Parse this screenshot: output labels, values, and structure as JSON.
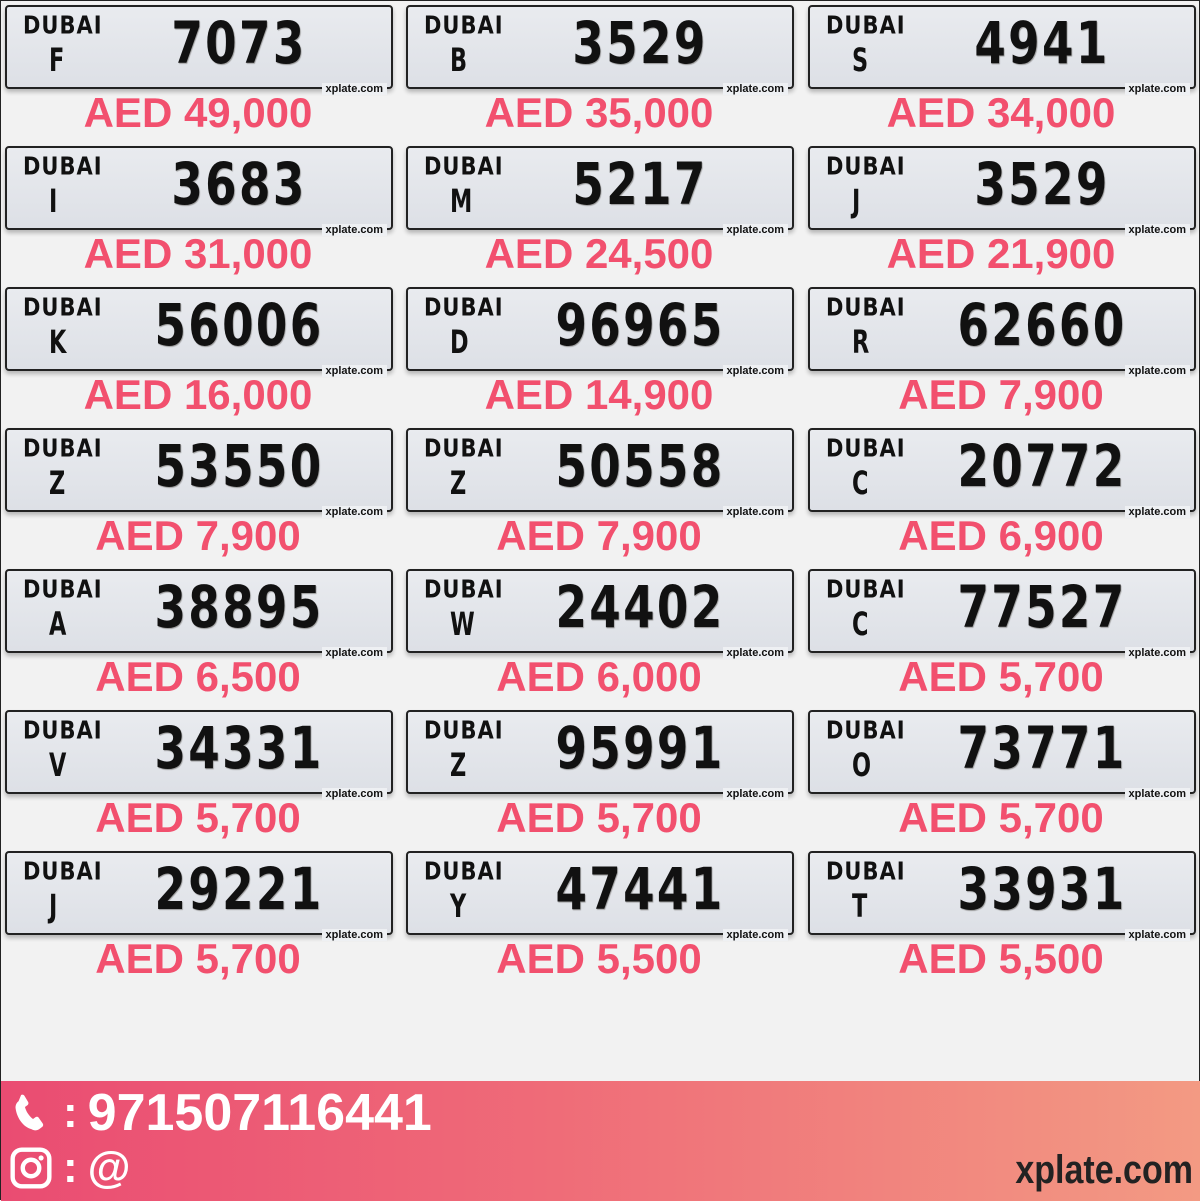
{
  "plates": [
    {
      "emirate": "DUBAI",
      "code": "F",
      "number": "7073",
      "price": "AED 49,000",
      "brand": "xplate.com"
    },
    {
      "emirate": "DUBAI",
      "code": "B",
      "number": "3529",
      "price": "AED 35,000",
      "brand": "xplate.com"
    },
    {
      "emirate": "DUBAI",
      "code": "S",
      "number": "4941",
      "price": "AED 34,000",
      "brand": "xplate.com"
    },
    {
      "emirate": "DUBAI",
      "code": "I",
      "number": "3683",
      "price": "AED 31,000",
      "brand": "xplate.com"
    },
    {
      "emirate": "DUBAI",
      "code": "M",
      "number": "5217",
      "price": "AED 24,500",
      "brand": "xplate.com"
    },
    {
      "emirate": "DUBAI",
      "code": "J",
      "number": "3529",
      "price": "AED 21,900",
      "brand": "xplate.com"
    },
    {
      "emirate": "DUBAI",
      "code": "K",
      "number": "56006",
      "price": "AED 16,000",
      "brand": "xplate.com"
    },
    {
      "emirate": "DUBAI",
      "code": "D",
      "number": "96965",
      "price": "AED 14,900",
      "brand": "xplate.com"
    },
    {
      "emirate": "DUBAI",
      "code": "R",
      "number": "62660",
      "price": "AED 7,900",
      "brand": "xplate.com"
    },
    {
      "emirate": "DUBAI",
      "code": "Z",
      "number": "53550",
      "price": "AED 7,900",
      "brand": "xplate.com"
    },
    {
      "emirate": "DUBAI",
      "code": "Z",
      "number": "50558",
      "price": "AED 7,900",
      "brand": "xplate.com"
    },
    {
      "emirate": "DUBAI",
      "code": "C",
      "number": "20772",
      "price": "AED 6,900",
      "brand": "xplate.com"
    },
    {
      "emirate": "DUBAI",
      "code": "A",
      "number": "38895",
      "price": "AED 6,500",
      "brand": "xplate.com"
    },
    {
      "emirate": "DUBAI",
      "code": "W",
      "number": "24402",
      "price": "AED 6,000",
      "brand": "xplate.com"
    },
    {
      "emirate": "DUBAI",
      "code": "C",
      "number": "77527",
      "price": "AED 5,700",
      "brand": "xplate.com"
    },
    {
      "emirate": "DUBAI",
      "code": "V",
      "number": "34331",
      "price": "AED 5,700",
      "brand": "xplate.com"
    },
    {
      "emirate": "DUBAI",
      "code": "Z",
      "number": "95991",
      "price": "AED 5,700",
      "brand": "xplate.com"
    },
    {
      "emirate": "DUBAI",
      "code": "O",
      "number": "73771",
      "price": "AED 5,700",
      "brand": "xplate.com"
    },
    {
      "emirate": "DUBAI",
      "code": "J",
      "number": "29221",
      "price": "AED 5,700",
      "brand": "xplate.com"
    },
    {
      "emirate": "DUBAI",
      "code": "Y",
      "number": "47441",
      "price": "AED 5,500",
      "brand": "xplate.com"
    },
    {
      "emirate": "DUBAI",
      "code": "T",
      "number": "33931",
      "price": "AED 5,500",
      "brand": "xplate.com"
    }
  ],
  "footer": {
    "separator": ":",
    "phone": "971507116441",
    "instagram": "@",
    "website": "xplate.com",
    "phone_icon": "phone-icon",
    "instagram_icon": "instagram-icon"
  },
  "colors": {
    "price": "#f2506e",
    "footer_start": "#ea4c72",
    "footer_end": "#f39a83"
  }
}
